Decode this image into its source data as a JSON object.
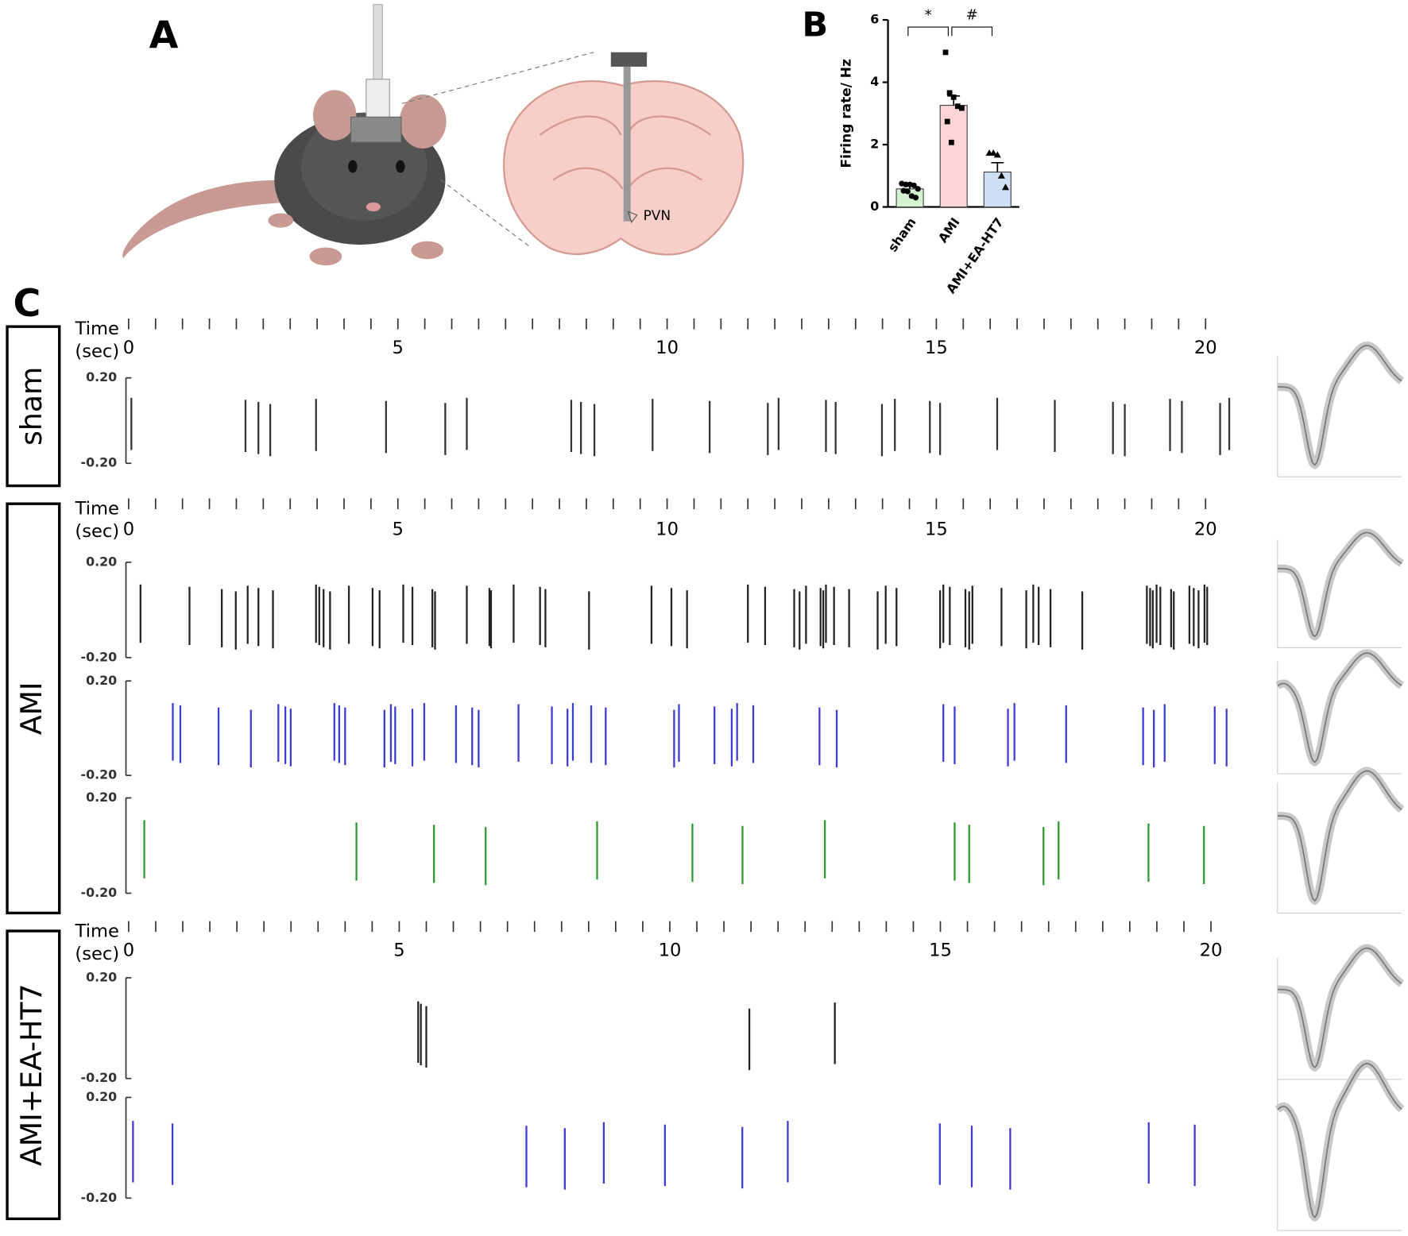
{
  "panel_labels": [
    "A",
    "B",
    "C"
  ],
  "panel_a": {
    "annotation": "PVN"
  },
  "chart_data": [
    {
      "type": "bar",
      "ylabel": "Firing rate/ Hz",
      "categories": [
        "sham",
        "AMI",
        "AMI+EA-HT7"
      ],
      "values": [
        0.58,
        3.26,
        1.12
      ],
      "errors": [
        0.1,
        0.3,
        0.3
      ],
      "colors": [
        "#d3f4cf",
        "#fbd4d7",
        "#cfdff6"
      ],
      "points": [
        [
          0.75,
          0.72,
          0.72,
          0.69,
          0.58,
          0.52,
          0.5,
          0.35,
          0.3
        ],
        [
          4.96,
          3.66,
          3.52,
          3.23,
          3.17,
          2.74,
          2.07
        ],
        [
          1.73,
          1.73,
          1.67,
          1.0,
          0.63
        ]
      ],
      "annotations": [
        "*",
        "#"
      ],
      "ylim": [
        0,
        6
      ],
      "yticks": [
        0,
        2,
        4,
        6
      ]
    },
    {
      "type": "raster",
      "group": "sham",
      "axis_label": [
        "Time",
        "(sec)"
      ],
      "xlim": [
        0,
        20
      ],
      "xticks": [
        0,
        5,
        10,
        15,
        20
      ],
      "tick_marks": [
        0,
        0.5,
        1,
        1.5,
        2,
        2.5,
        3,
        3.5,
        4,
        4.5,
        5,
        5.5,
        6,
        6.5,
        7,
        7.5,
        8,
        8.5,
        9,
        9.5,
        10,
        10.5,
        11,
        11.5,
        12,
        12.5,
        13,
        13.5,
        14,
        14.5,
        15,
        15.5,
        16,
        16.5,
        17,
        17.5,
        18,
        18.5,
        19,
        19.5,
        20
      ],
      "ylim": [
        -0.2,
        0.2
      ],
      "yticks": [
        {
          "value": 0.2,
          "label": "0.20"
        },
        {
          "value": -0.2,
          "label": "-0.20"
        }
      ],
      "series": [
        {
          "color": "#333333",
          "values": [
            0.05,
            2.17,
            2.41,
            2.63,
            3.48,
            4.78,
            5.88,
            6.28,
            8.22,
            8.4,
            8.65,
            9.73,
            10.79,
            11.87,
            12.07,
            12.95,
            13.13,
            13.99,
            14.23,
            14.88,
            15.07,
            16.13,
            17.2,
            18.28,
            18.5,
            19.34,
            19.56,
            20.27,
            20.44
          ]
        }
      ]
    },
    {
      "type": "raster",
      "group": "AMI",
      "axis_label": [
        "Time",
        "(sec)"
      ],
      "xlim": [
        0,
        20
      ],
      "xticks": [
        0,
        5,
        10,
        15,
        20
      ],
      "tick_marks": [
        0,
        0.5,
        1,
        1.5,
        2,
        2.5,
        3,
        3.5,
        4,
        4.5,
        5,
        5.5,
        6,
        6.5,
        7,
        7.5,
        8,
        8.5,
        9,
        9.5,
        10,
        10.5,
        11,
        11.5,
        12,
        12.5,
        13,
        13.5,
        14,
        14.5,
        15,
        15.5,
        16,
        16.5,
        17,
        17.5,
        18,
        18.5,
        19,
        19.5,
        20
      ],
      "ylim": [
        -0.2,
        0.2
      ],
      "yticks": [
        {
          "value": 0.2,
          "label": "0.20"
        },
        {
          "value": -0.2,
          "label": "-0.20"
        }
      ],
      "series": [
        {
          "color": "#222222",
          "values": [
            0.22,
            1.13,
            1.73,
            1.99,
            2.21,
            2.41,
            2.68,
            3.48,
            3.54,
            3.62,
            3.74,
            4.09,
            4.53,
            4.66,
            5.1,
            5.27,
            5.64,
            5.69,
            6.28,
            6.7,
            6.73,
            7.15,
            7.64,
            7.74,
            8.55,
            9.71,
            10.08,
            10.37,
            11.5,
            11.82,
            12.36,
            12.46,
            12.58,
            12.85,
            12.9,
            12.95,
            13.1,
            13.38,
            13.91,
            14.06,
            14.26,
            15.07,
            15.13,
            15.25,
            15.54,
            15.61,
            15.67,
            16.21,
            16.67,
            16.8,
            16.9,
            17.12,
            17.71,
            18.91,
            18.97,
            19.02,
            19.09,
            19.16,
            19.36,
            19.41,
            19.7,
            19.78,
            19.87,
            19.98,
            20.03
          ]
        },
        {
          "color": "#3b3bd6",
          "values": [
            0.82,
            0.96,
            1.67,
            2.27,
            2.78,
            2.91,
            3.01,
            3.82,
            3.91,
            4.02,
            4.75,
            4.87,
            4.95,
            5.27,
            5.49,
            6.08,
            6.38,
            6.5,
            7.24,
            7.86,
            8.15,
            8.25,
            8.59,
            8.86,
            10.13,
            10.22,
            10.88,
            11.2,
            11.3,
            11.6,
            12.83,
            13.15,
            15.13,
            15.34,
            16.33,
            16.45,
            17.41,
            18.84,
            19.04,
            19.24,
            20.17,
            20.39
          ]
        },
        {
          "color": "#2e9a2e",
          "values": [
            0.29,
            4.23,
            5.67,
            6.63,
            8.7,
            10.47,
            11.4,
            12.93,
            15.34,
            15.61,
            16.99,
            17.27,
            18.94,
            19.97
          ]
        }
      ]
    },
    {
      "type": "raster",
      "group": "AMI+EA-HT7",
      "axis_label": [
        "Time",
        "(sec)"
      ],
      "xlim": [
        0,
        20
      ],
      "xticks": [
        0,
        5,
        10,
        15,
        20
      ],
      "tick_marks": [
        0,
        0.5,
        1,
        1.5,
        2,
        2.5,
        3,
        3.5,
        4,
        4.5,
        5,
        5.5,
        6,
        6.5,
        7,
        7.5,
        8,
        8.5,
        9,
        9.5,
        10,
        10.5,
        11,
        11.5,
        12,
        12.5,
        13,
        13.5,
        14,
        14.5,
        15,
        15.5,
        16,
        16.5,
        17,
        17.5,
        18,
        18.5,
        19,
        19.5,
        20
      ],
      "ylim": [
        -0.2,
        0.2
      ],
      "yticks": [
        {
          "value": 0.2,
          "label": "0.20"
        },
        {
          "value": -0.2,
          "label": "-0.20"
        }
      ],
      "series": [
        {
          "color": "#222222",
          "values": [
            5.35,
            5.4,
            5.5,
            11.47,
            13.05
          ]
        },
        {
          "color": "#3b3bd6",
          "values": [
            0.08,
            0.81,
            7.35,
            8.06,
            8.78,
            9.91,
            11.34,
            12.18,
            14.99,
            15.58,
            16.29,
            18.85,
            19.7
          ]
        }
      ]
    }
  ]
}
